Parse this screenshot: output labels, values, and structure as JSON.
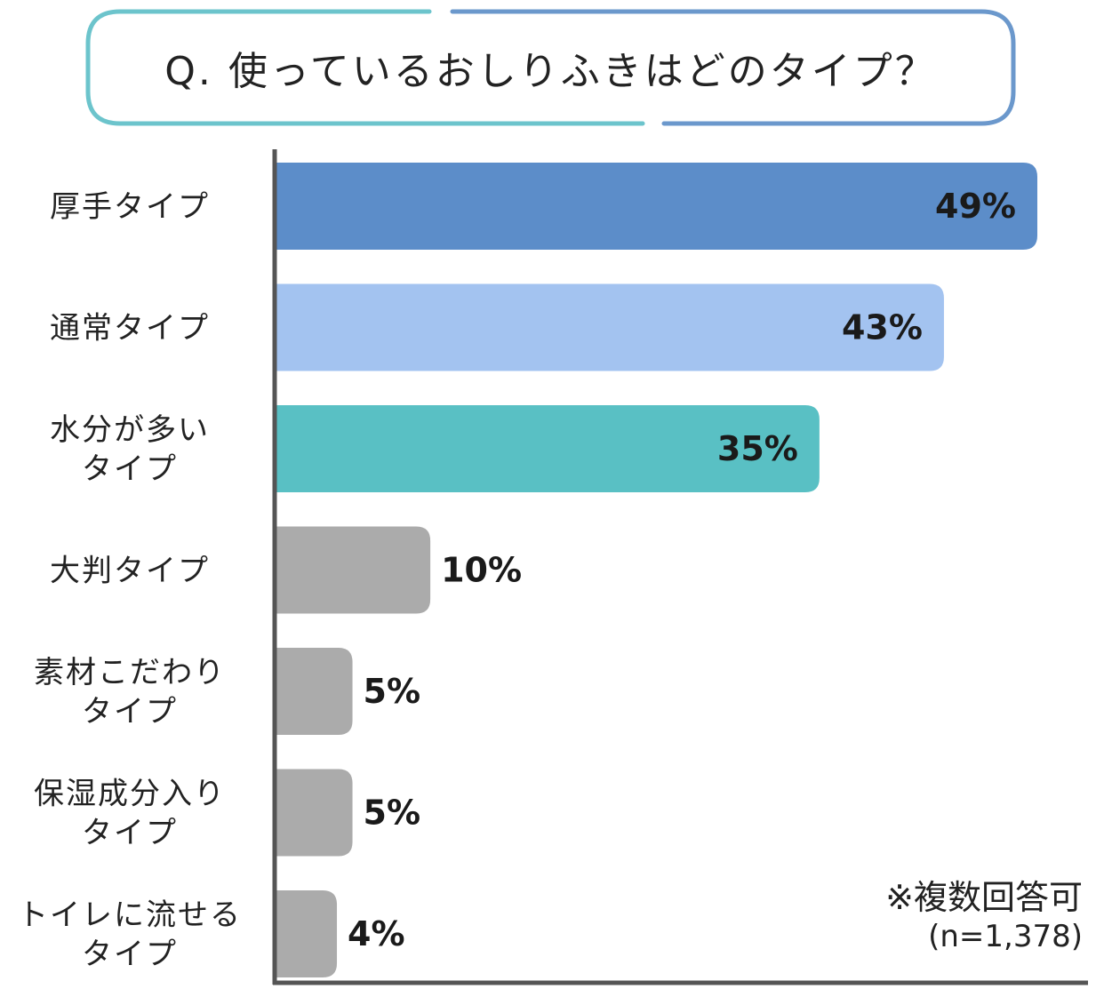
{
  "title": "Q. 使っているおしりふきはどのタイプ？",
  "note": {
    "line1": "※複数回答可",
    "line2": "(n=1,378)"
  },
  "colors": {
    "bar_1": "#5c8dc9",
    "bar_2": "#a3c3f0",
    "bar_3": "#59c0c4",
    "bar_other": "#ababab",
    "title_border_left": "#6cc4cc",
    "title_border_right": "#6b98cc",
    "axis": "#555555"
  },
  "chart_data": {
    "type": "bar",
    "orientation": "horizontal",
    "categories": [
      [
        "厚手タイプ"
      ],
      [
        "通常タイプ"
      ],
      [
        "水分が多い",
        "タイプ"
      ],
      [
        "大判タイプ"
      ],
      [
        "素材こだわり",
        "タイプ"
      ],
      [
        "保湿成分入り",
        "タイプ"
      ],
      [
        "トイレに流せる",
        "タイプ"
      ]
    ],
    "values": [
      49,
      43,
      35,
      10,
      5,
      5,
      4
    ],
    "value_labels": [
      "49%",
      "43%",
      "35%",
      "10%",
      "5%",
      "5%",
      "4%"
    ],
    "unit": "%",
    "xlim": [
      0,
      49
    ],
    "grid": false,
    "legend": "none"
  }
}
